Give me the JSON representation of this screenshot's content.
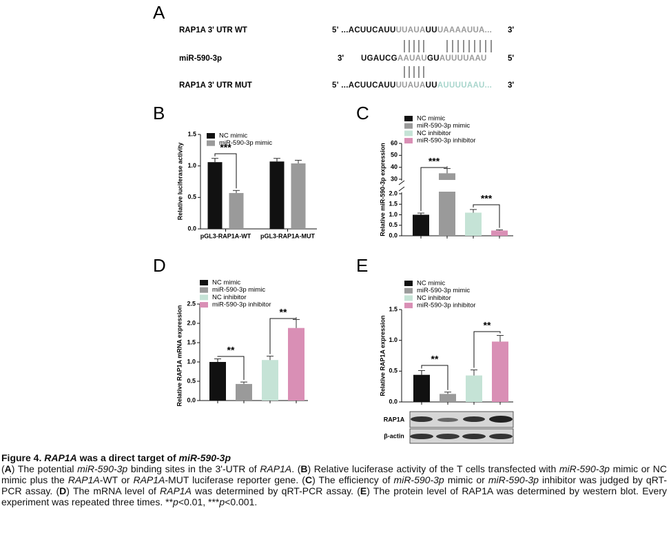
{
  "panel_labels": [
    "A",
    "B",
    "C",
    "D",
    "E"
  ],
  "panel_a": {
    "rows": [
      {
        "name": "RAP1A 3' UTR WT",
        "segments": [
          {
            "text": "5' ...ACUUCAUU",
            "color": "#111111"
          },
          {
            "text": "UUAUA",
            "color": "#9a9a9a"
          },
          {
            "text": "UU",
            "color": "#111111"
          },
          {
            "text": "UAAAAUUA...",
            "color": "#9a9a9a"
          }
        ],
        "end": "3'"
      },
      {
        "name": "miR-590-3p",
        "start": "3'",
        "segments": [
          {
            "text": "UGAUCG",
            "color": "#111111"
          },
          {
            "text": "AAUAU",
            "color": "#9a9a9a"
          },
          {
            "text": "GU",
            "color": "#111111"
          },
          {
            "text": "AUUUUAAU",
            "color": "#9a9a9a"
          }
        ],
        "end": "5'"
      },
      {
        "name": "RAP1A 3' UTR MUT",
        "segments": [
          {
            "text": "5' ...ACUUCAUU",
            "color": "#111111"
          },
          {
            "text": "UUAUA",
            "color": "#9a9a9a"
          },
          {
            "text": "UU",
            "color": "#111111"
          },
          {
            "text": "AUUUUAAU...",
            "color": "#a8d5cc"
          }
        ],
        "end": "3'"
      }
    ]
  },
  "chart_data": [
    {
      "type": "bar",
      "ylabel": "Relative luciferase activity",
      "categories": [
        "pGL3-RAP1A-WT",
        "pGL3-RAP1A-MUT"
      ],
      "series": [
        {
          "name": "NC mimic",
          "color": "#111111",
          "values": [
            1.06,
            1.07
          ],
          "errors": [
            0.06,
            0.05
          ]
        },
        {
          "name": "miR-590-3p mimic",
          "color": "#9a9a9a",
          "values": [
            0.57,
            1.04
          ],
          "errors": [
            0.04,
            0.05
          ]
        }
      ],
      "ylim": [
        0,
        1.5
      ],
      "yticks": [
        {
          "value": 0,
          "label": "0.0"
        },
        {
          "value": 0.5,
          "label": "0.5"
        },
        {
          "value": 1,
          "label": "1.0"
        },
        {
          "value": 1.5,
          "label": "1.5"
        }
      ],
      "annotations": [
        "***"
      ]
    },
    {
      "type": "bar",
      "ylabel": "Relative miR-590-3p expression",
      "series": [
        {
          "name": "NC mimic",
          "color": "#111111",
          "values": [
            1.0
          ],
          "errors": [
            0.08
          ]
        },
        {
          "name": "miR-590-3p mimic",
          "color": "#9a9a9a",
          "values": [
            35
          ],
          "errors": [
            4
          ]
        },
        {
          "name": "NC inhibitor",
          "color": "#c5e3d6",
          "values": [
            1.1
          ],
          "errors": [
            0.15
          ]
        },
        {
          "name": "miR-590-3p inhibitor",
          "color": "#d98fb5",
          "values": [
            0.25
          ],
          "errors": [
            0.03
          ]
        }
      ],
      "ylim": [
        0,
        60
      ],
      "ybreak": [
        2,
        30
      ],
      "yticks": [
        {
          "value": 0,
          "label": "0.0"
        },
        {
          "value": 0.5,
          "label": "0.5"
        },
        {
          "value": 1,
          "label": "1.0"
        },
        {
          "value": 1.5,
          "label": "1.5"
        },
        {
          "value": 2,
          "label": "2.0"
        },
        30,
        40,
        50,
        60
      ],
      "annotations": [
        "***",
        "***"
      ]
    },
    {
      "type": "bar",
      "ylabel": "Relative RAP1A mRNA expression",
      "series": [
        {
          "name": "NC mimic",
          "color": "#111111",
          "values": [
            1.0
          ],
          "errors": [
            0.08
          ]
        },
        {
          "name": "miR-590-3p mimic",
          "color": "#9a9a9a",
          "values": [
            0.43
          ],
          "errors": [
            0.05
          ]
        },
        {
          "name": "NC inhibitor",
          "color": "#c5e3d6",
          "values": [
            1.05
          ],
          "errors": [
            0.1
          ]
        },
        {
          "name": "miR-590-3p inhibitor",
          "color": "#d98fb5",
          "values": [
            1.88
          ],
          "errors": [
            0.22
          ]
        }
      ],
      "ylim": [
        0,
        2.5
      ],
      "yticks": [
        {
          "value": 0,
          "label": "0.0"
        },
        {
          "value": 0.5,
          "label": "0.5"
        },
        {
          "value": 1,
          "label": "1.0"
        },
        {
          "value": 1.5,
          "label": "1.5"
        },
        {
          "value": 2,
          "label": "2.0"
        },
        {
          "value": 2.5,
          "label": "2.5"
        }
      ],
      "annotations": [
        "**",
        "**"
      ]
    },
    {
      "type": "bar",
      "ylabel": "Relative RAP1A expression",
      "series": [
        {
          "name": "NC mimic",
          "color": "#111111",
          "values": [
            0.44
          ],
          "errors": [
            0.07
          ]
        },
        {
          "name": "miR-590-3p mimic",
          "color": "#9a9a9a",
          "values": [
            0.13
          ],
          "errors": [
            0.03
          ]
        },
        {
          "name": "NC inhibitor",
          "color": "#c5e3d6",
          "values": [
            0.43
          ],
          "errors": [
            0.09
          ]
        },
        {
          "name": "miR-590-3p inhibitor",
          "color": "#d98fb5",
          "values": [
            0.98
          ],
          "errors": [
            0.1
          ]
        }
      ],
      "ylim": [
        0,
        1.5
      ],
      "yticks": [
        {
          "value": 0,
          "label": "0.0"
        },
        {
          "value": 0.5,
          "label": "0.5"
        },
        {
          "value": 1,
          "label": "1.0"
        },
        {
          "value": 1.5,
          "label": "1.5"
        }
      ],
      "annotations": [
        "**",
        "**"
      ],
      "blot_labels": [
        "RAP1A",
        "β-actin"
      ]
    }
  ],
  "caption": {
    "title": [
      {
        "text": "Figure 4. ",
        "bold": true
      },
      {
        "text": "RAP1A",
        "bold": true,
        "italic": true
      },
      {
        "text": " was a direct target of ",
        "bold": true
      },
      {
        "text": "miR-590-3p",
        "bold": true,
        "italic": true
      }
    ],
    "body": [
      {
        "text": "("
      },
      {
        "text": "A",
        "bold": true
      },
      {
        "text": ") The potential "
      },
      {
        "text": "miR-590-3p",
        "italic": true
      },
      {
        "text": " binding sites in the 3'-UTR of "
      },
      {
        "text": "RAP1A",
        "italic": true
      },
      {
        "text": ". ("
      },
      {
        "text": "B",
        "bold": true
      },
      {
        "text": ") Relative luciferase activity of the T cells transfected with "
      },
      {
        "text": "miR-590-3p",
        "italic": true
      },
      {
        "text": " mimic or NC mimic plus the "
      },
      {
        "text": "RAP1A",
        "italic": true
      },
      {
        "text": "-WT or "
      },
      {
        "text": "RAP1A",
        "italic": true
      },
      {
        "text": "-MUT luciferase reporter gene. ("
      },
      {
        "text": "C",
        "bold": true
      },
      {
        "text": ") The efficiency of "
      },
      {
        "text": "miR-590-3p",
        "italic": true
      },
      {
        "text": " mimic or "
      },
      {
        "text": "miR-590-3p",
        "italic": true
      },
      {
        "text": " inhibitor was judged by qRT-PCR assay. ("
      },
      {
        "text": "D",
        "bold": true
      },
      {
        "text": ") The mRNA level of "
      },
      {
        "text": "RAP1A",
        "italic": true
      },
      {
        "text": " was determined by qRT-PCR assay. ("
      },
      {
        "text": "E",
        "bold": true
      },
      {
        "text": ") The protein level of RAP1A was determined by western blot. Every experiment was repeated three times. **"
      },
      {
        "text": "p",
        "italic": true
      },
      {
        "text": "<0.01, ***"
      },
      {
        "text": "p",
        "italic": true
      },
      {
        "text": "<0.001."
      }
    ]
  }
}
